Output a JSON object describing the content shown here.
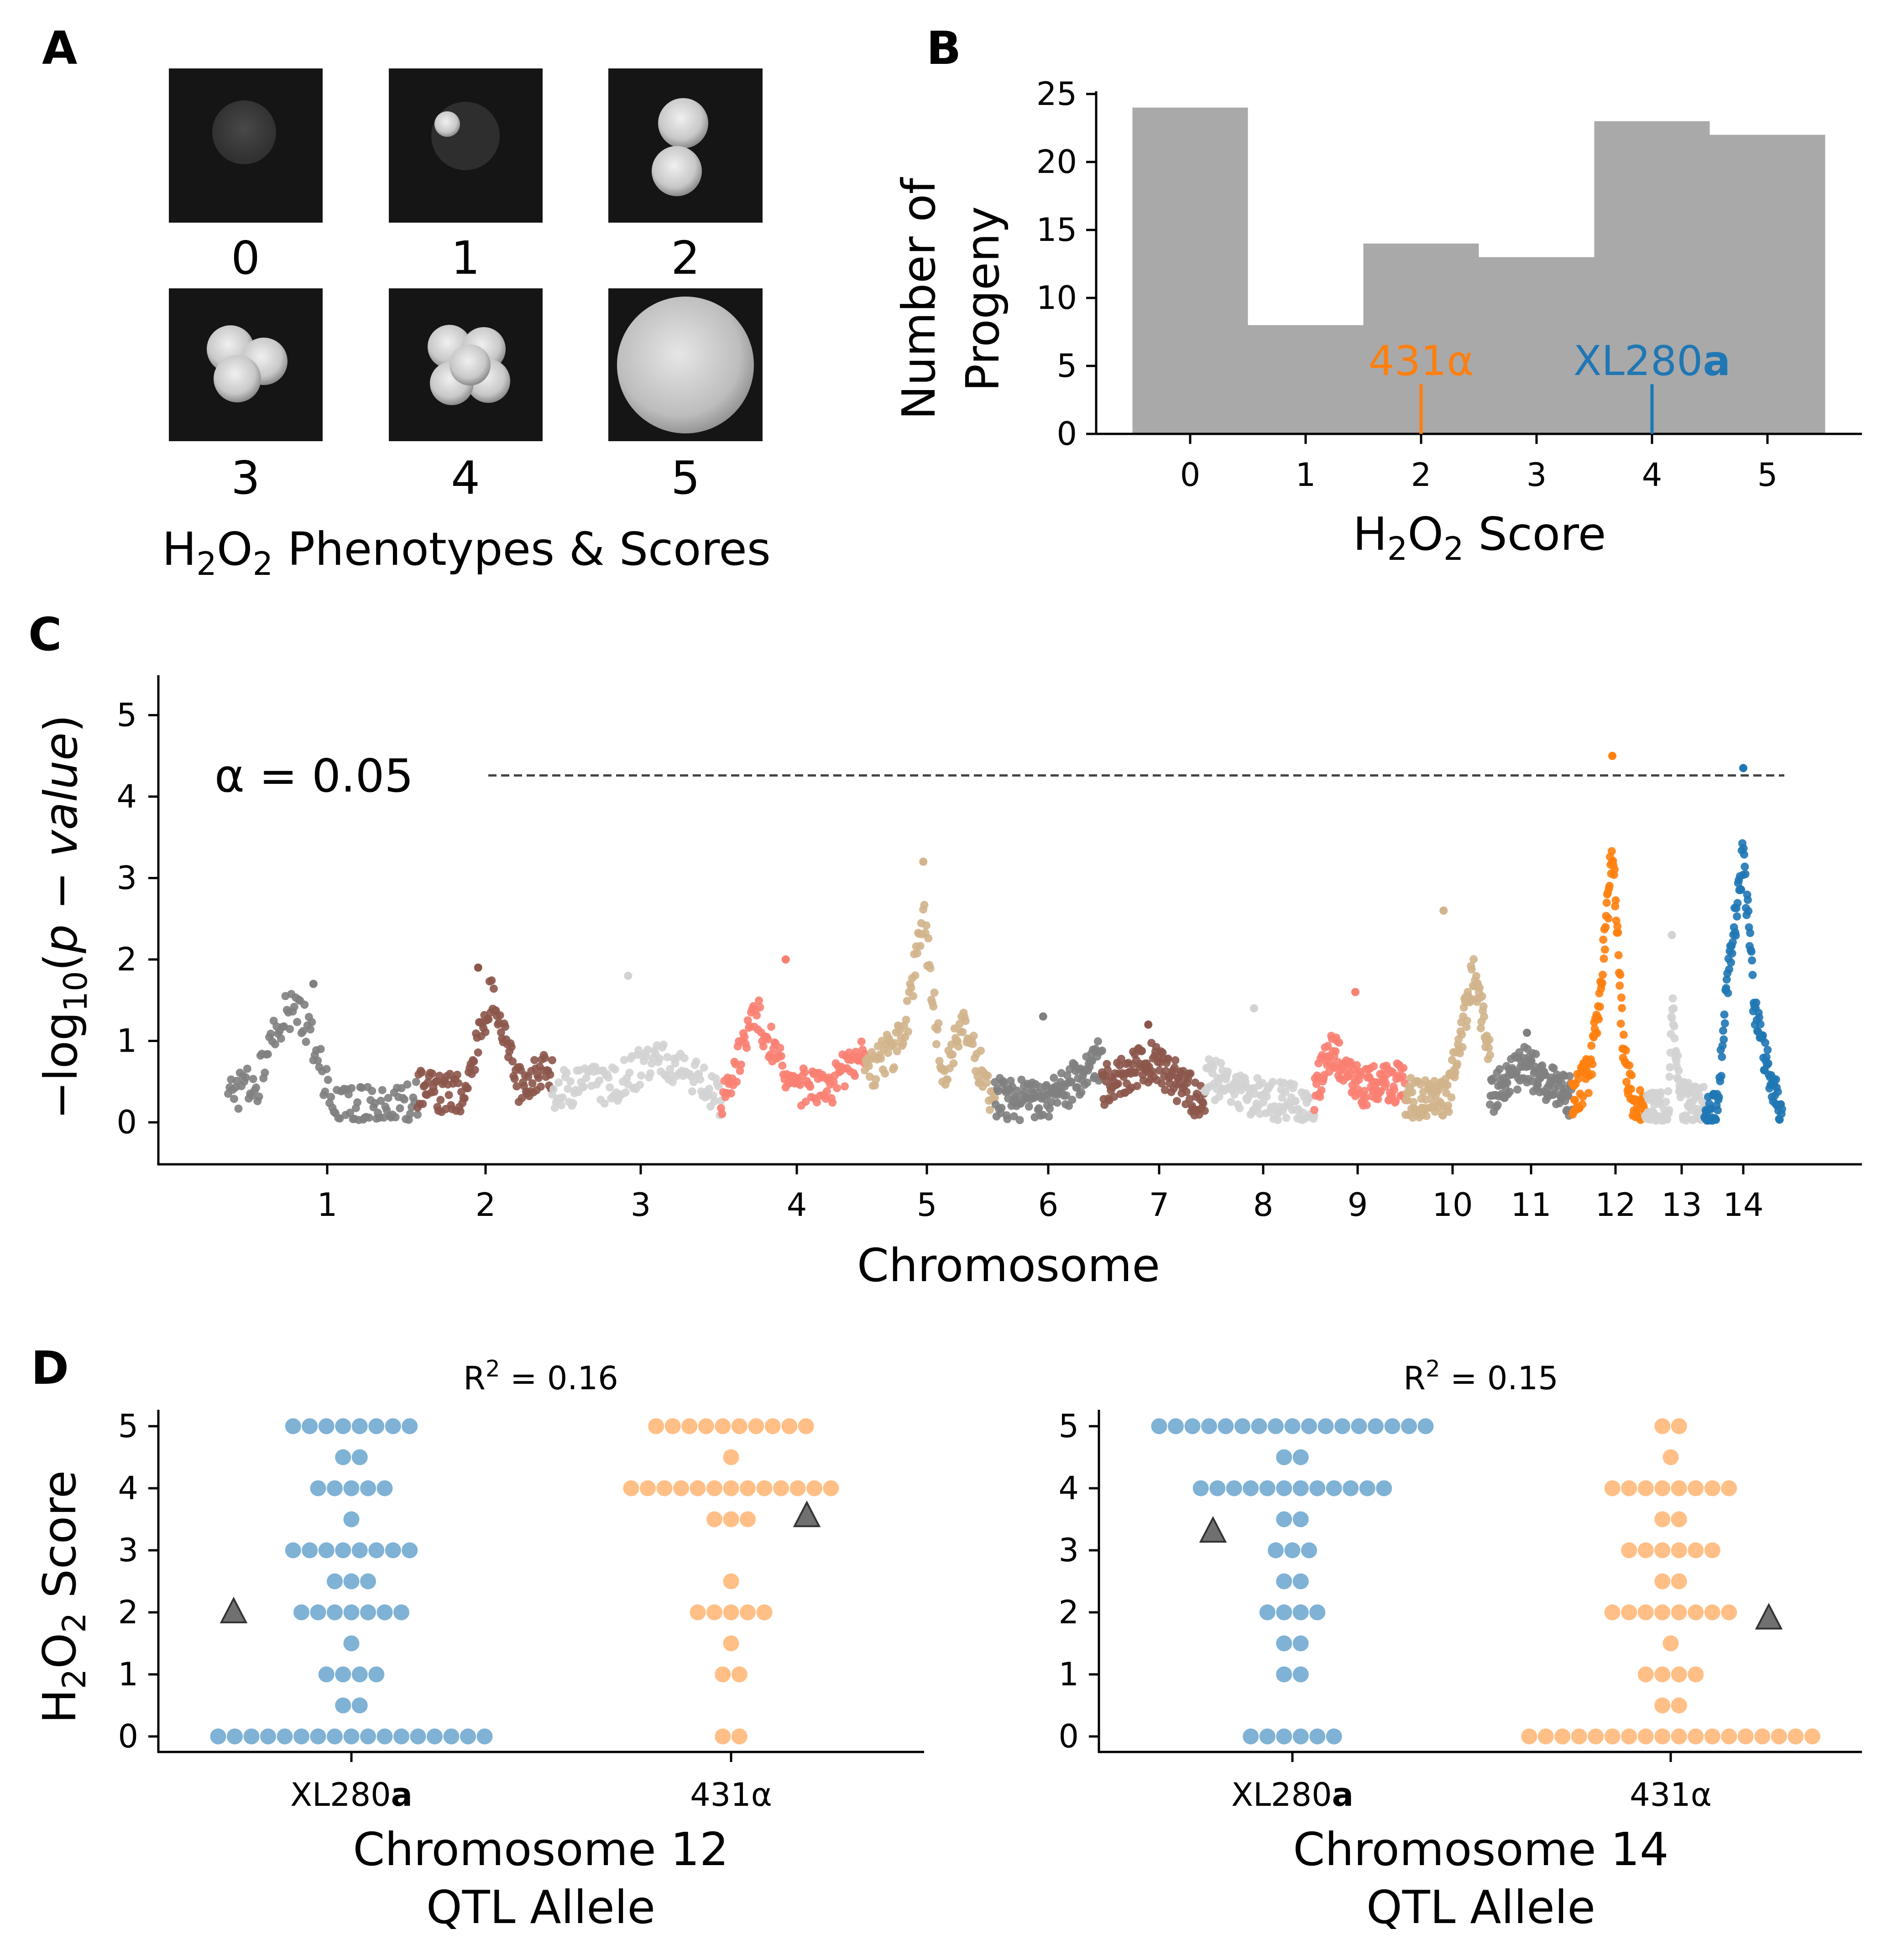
{
  "colors": {
    "blue": "#1f77b4",
    "orange": "#ff7f0e",
    "light_blue": "#7fb2d5",
    "light_orange": "#ffbf86",
    "hist_gray": "#a9a9a9",
    "triangle": "#707070",
    "chrom_palette": [
      "#7f7f7f",
      "#8c564b",
      "#d3d3d3",
      "#fa8072",
      "#d2b48c"
    ]
  },
  "panel_a": {
    "letter": "A",
    "scores": [
      "0",
      "1",
      "2",
      "3",
      "4",
      "5"
    ],
    "caption_main": "H",
    "caption_sub1": "2",
    "caption_mid": "O",
    "caption_sub2": "2",
    "caption_rest": " Phenotypes & Scores"
  },
  "panel_b": {
    "letter": "B",
    "ylabel_line1": "Number of",
    "ylabel_line2": "Progeny",
    "xlabel_main": "H",
    "xlabel_sub1": "2",
    "xlabel_mid": "O",
    "xlabel_sub2": "2",
    "xlabel_rest": " Score",
    "yticks": [
      "0",
      "5",
      "10",
      "15",
      "20",
      "25"
    ],
    "xticks": [
      "0",
      "1",
      "2",
      "3",
      "4",
      "5"
    ],
    "parent_431": {
      "text": "431α",
      "score": 2
    },
    "parent_xl280": {
      "text": "XL280",
      "bold_suffix": "a",
      "score": 4
    }
  },
  "panel_c": {
    "letter": "C",
    "ylabel_pre": "−log",
    "ylabel_sub": "10",
    "ylabel_open": "(",
    "ylabel_italic": "p − value",
    "ylabel_close": ")",
    "xlabel": "Chromosome",
    "threshold_label": "α = 0.05",
    "threshold": 4.26,
    "yticks": [
      "0",
      "1",
      "2",
      "3",
      "4",
      "5"
    ],
    "chromosomes": [
      "1",
      "2",
      "3",
      "4",
      "5",
      "6",
      "7",
      "8",
      "9",
      "10",
      "11",
      "12",
      "13",
      "14"
    ]
  },
  "panel_d": {
    "letter": "D",
    "ylabel_main": "H",
    "ylabel_sub1": "2",
    "ylabel_mid": "O",
    "ylabel_sub2": "2",
    "ylabel_rest": " Score",
    "yticks": [
      "0",
      "1",
      "2",
      "3",
      "4",
      "5"
    ],
    "left": {
      "r2_pre": "R",
      "r2_sup": "2",
      "r2_val": " = 0.16",
      "xlabel_line1": "Chromosome 12",
      "xlabel_line2": "QTL Allele",
      "cat1_text": "XL280",
      "cat1_bold": "a",
      "cat2_text": "431α"
    },
    "right": {
      "r2_pre": "R",
      "r2_sup": "2",
      "r2_val": " = 0.15",
      "xlabel_line1": "Chromosome 14",
      "xlabel_line2": "QTL Allele",
      "cat1_text": "XL280",
      "cat1_bold": "a",
      "cat2_text": "431α"
    }
  },
  "chart_data": [
    {
      "type": "bar",
      "panel": "B",
      "categories": [
        "0",
        "1",
        "2",
        "3",
        "4",
        "5"
      ],
      "values": [
        24,
        8,
        14,
        13,
        23,
        22
      ],
      "xlabel": "H2O2 Score",
      "ylabel": "Number of Progeny",
      "ylim": [
        0,
        25
      ],
      "annotations": [
        {
          "text": "431α",
          "x": 2
        },
        {
          "text": "XL280a",
          "x": 4
        }
      ]
    },
    {
      "type": "scatter",
      "panel": "C",
      "xlabel": "Chromosome",
      "ylabel": "−log10(p − value)",
      "ylim": [
        -0.5,
        5.5
      ],
      "threshold": {
        "label": "α = 0.05",
        "value": 4.26
      },
      "chromosome_peaks": [
        {
          "chrom": "1",
          "max": 1.7
        },
        {
          "chrom": "2",
          "max": 1.9
        },
        {
          "chrom": "3",
          "max": 1.8
        },
        {
          "chrom": "4",
          "max": 2.0
        },
        {
          "chrom": "5",
          "max": 3.2
        },
        {
          "chrom": "6",
          "max": 1.3
        },
        {
          "chrom": "7",
          "max": 1.2
        },
        {
          "chrom": "8",
          "max": 1.4
        },
        {
          "chrom": "9",
          "max": 1.6
        },
        {
          "chrom": "10",
          "max": 2.6
        },
        {
          "chrom": "11",
          "max": 1.1
        },
        {
          "chrom": "12",
          "max": 4.5
        },
        {
          "chrom": "13",
          "max": 2.3
        },
        {
          "chrom": "14",
          "max": 4.35
        }
      ]
    },
    {
      "type": "scatter",
      "panel": "D-left",
      "title": "R2 = 0.16",
      "xlabel": "Chromosome 12 QTL Allele",
      "ylabel": "H2O2 Score",
      "categories": [
        "XL280a",
        "431α"
      ],
      "counts": {
        "XL280a": {
          "5": 8,
          "4.5": 2,
          "4": 5,
          "3.5": 1,
          "3": 8,
          "2.5": 3,
          "2": 7,
          "1.5": 1,
          "1": 4,
          "0.5": 2,
          "0": 17
        },
        "431α": {
          "5": 10,
          "4.5": 1,
          "4": 13,
          "3.5": 3,
          "2.5": 1,
          "2": 5,
          "1.5": 1,
          "1": 2,
          "0": 2
        }
      },
      "parents": [
        {
          "category": "XL280a",
          "score": 2.0
        },
        {
          "category": "431α",
          "score": 3.55
        }
      ]
    },
    {
      "type": "scatter",
      "panel": "D-right",
      "title": "R2 = 0.15",
      "xlabel": "Chromosome 14 QTL Allele",
      "ylabel": "H2O2 Score",
      "categories": [
        "XL280a",
        "431α"
      ],
      "counts": {
        "XL280a": {
          "5": 17,
          "4.5": 2,
          "4": 12,
          "3.5": 2,
          "3": 3,
          "2.5": 2,
          "2": 4,
          "1.5": 2,
          "1": 2,
          "0": 6
        },
        "431α": {
          "5": 2,
          "4.5": 1,
          "4": 8,
          "3.5": 2,
          "3": 6,
          "2.5": 2,
          "2": 8,
          "1.5": 1,
          "1": 4,
          "0.5": 2,
          "0": 18
        }
      },
      "parents": [
        {
          "category": "XL280a",
          "score": 3.3
        },
        {
          "category": "431α",
          "score": 1.9
        }
      ]
    }
  ]
}
